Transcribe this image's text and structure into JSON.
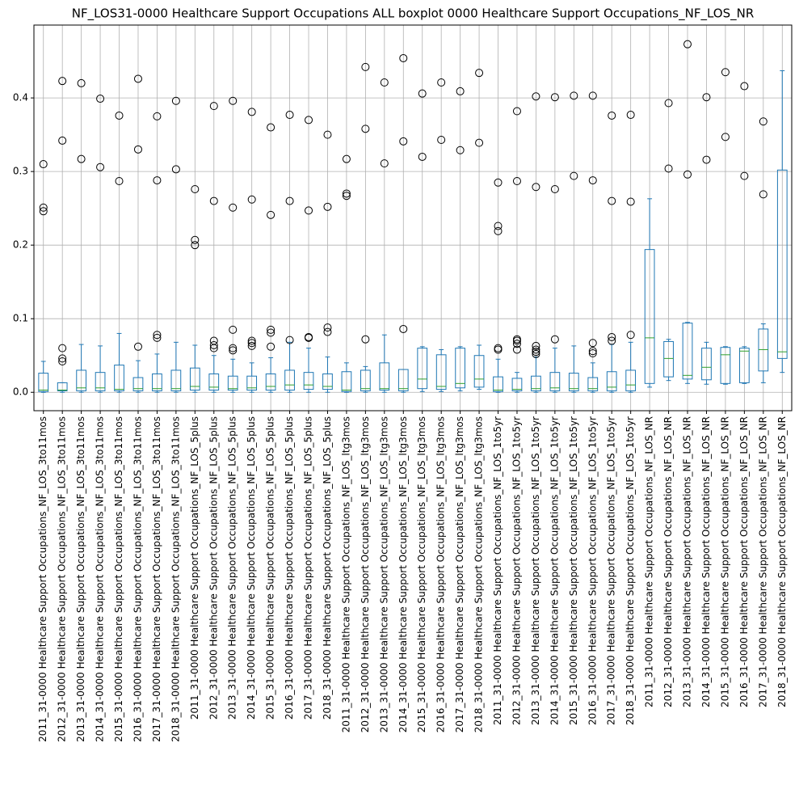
{
  "chart_data": {
    "type": "boxplot",
    "title": "NF_LOS31-0000 Healthcare Support Occupations ALL boxplot 0000 Healthcare Support Occupations_NF_LOS_NR",
    "categories": [
      "2011_31-0000 Healthcare Support Occupations_NF_LOS_3to11mos",
      "2012_31-0000 Healthcare Support Occupations_NF_LOS_3to11mos",
      "2013_31-0000 Healthcare Support Occupations_NF_LOS_3to11mos",
      "2014_31-0000 Healthcare Support Occupations_NF_LOS_3to11mos",
      "2015_31-0000 Healthcare Support Occupations_NF_LOS_3to11mos",
      "2016_31-0000 Healthcare Support Occupations_NF_LOS_3to11mos",
      "2017_31-0000 Healthcare Support Occupations_NF_LOS_3to11mos",
      "2018_31-0000 Healthcare Support Occupations_NF_LOS_3to11mos",
      "2011_31-0000 Healthcare Support Occupations_NF_LOS_5plus",
      "2012_31-0000 Healthcare Support Occupations_NF_LOS_5plus",
      "2013_31-0000 Healthcare Support Occupations_NF_LOS_5plus",
      "2014_31-0000 Healthcare Support Occupations_NF_LOS_5plus",
      "2015_31-0000 Healthcare Support Occupations_NF_LOS_5plus",
      "2016_31-0000 Healthcare Support Occupations_NF_LOS_5plus",
      "2017_31-0000 Healthcare Support Occupations_NF_LOS_5plus",
      "2018_31-0000 Healthcare Support Occupations_NF_LOS_5plus",
      "2011_31-0000 Healthcare Support Occupations_NF_LOS_ltg3mos",
      "2012_31-0000 Healthcare Support Occupations_NF_LOS_ltg3mos",
      "2013_31-0000 Healthcare Support Occupations_NF_LOS_ltg3mos",
      "2014_31-0000 Healthcare Support Occupations_NF_LOS_ltg3mos",
      "2015_31-0000 Healthcare Support Occupations_NF_LOS_ltg3mos",
      "2016_31-0000 Healthcare Support Occupations_NF_LOS_ltg3mos",
      "2017_31-0000 Healthcare Support Occupations_NF_LOS_ltg3mos",
      "2018_31-0000 Healthcare Support Occupations_NF_LOS_ltg3mos",
      "2011_31-0000 Healthcare Support Occupations_NF_LOS_1to5yr",
      "2012_31-0000 Healthcare Support Occupations_NF_LOS_1to5yr",
      "2013_31-0000 Healthcare Support Occupations_NF_LOS_1to5yr",
      "2014_31-0000 Healthcare Support Occupations_NF_LOS_1to5yr",
      "2015_31-0000 Healthcare Support Occupations_NF_LOS_1to5yr",
      "2016_31-0000 Healthcare Support Occupations_NF_LOS_1to5yr",
      "2017_31-0000 Healthcare Support Occupations_NF_LOS_1to5yr",
      "2018_31-0000 Healthcare Support Occupations_NF_LOS_1to5yr",
      "2011_31-0000 Healthcare Support Occupations_NF_LOS_NR",
      "2012_31-0000 Healthcare Support Occupations_NF_LOS_NR",
      "2013_31-0000 Healthcare Support Occupations_NF_LOS_NR",
      "2014_31-0000 Healthcare Support Occupations_NF_LOS_NR",
      "2015_31-0000 Healthcare Support Occupations_NF_LOS_NR",
      "2016_31-0000 Healthcare Support Occupations_NF_LOS_NR",
      "2017_31-0000 Healthcare Support Occupations_NF_LOS_NR",
      "2018_31-0000 Healthcare Support Occupations_NF_LOS_NR"
    ],
    "boxes": [
      {
        "whislo": 0,
        "q1": 0.001,
        "med": 0.003,
        "q3": 0.026,
        "whishi": 0.042,
        "fliers": [
          0.31,
          0.251,
          0.246
        ]
      },
      {
        "whislo": 0,
        "q1": 0.002,
        "med": 0.003,
        "q3": 0.013,
        "whishi": 0.013,
        "fliers": [
          0.042,
          0.046,
          0.06,
          0.342,
          0.423
        ]
      },
      {
        "whislo": 0,
        "q1": 0.002,
        "med": 0.006,
        "q3": 0.03,
        "whishi": 0.065,
        "fliers": [
          0.317,
          0.42
        ]
      },
      {
        "whislo": 0,
        "q1": 0.002,
        "med": 0.006,
        "q3": 0.027,
        "whishi": 0.063,
        "fliers": [
          0.306,
          0.399
        ]
      },
      {
        "whislo": 0,
        "q1": 0.002,
        "med": 0.004,
        "q3": 0.037,
        "whishi": 0.08,
        "fliers": [
          0.287,
          0.376
        ]
      },
      {
        "whislo": 0,
        "q1": 0.002,
        "med": 0.005,
        "q3": 0.02,
        "whishi": 0.043,
        "fliers": [
          0.062,
          0.33,
          0.426
        ]
      },
      {
        "whislo": 0,
        "q1": 0.002,
        "med": 0.005,
        "q3": 0.025,
        "whishi": 0.052,
        "fliers": [
          0.074,
          0.078,
          0.288,
          0.375
        ]
      },
      {
        "whislo": 0,
        "q1": 0.002,
        "med": 0.005,
        "q3": 0.03,
        "whishi": 0.068,
        "fliers": [
          0.303,
          0.396
        ]
      },
      {
        "whislo": 0,
        "q1": 0.003,
        "med": 0.008,
        "q3": 0.033,
        "whishi": 0.064,
        "fliers": [
          0.2,
          0.207,
          0.276
        ]
      },
      {
        "whislo": 0,
        "q1": 0.003,
        "med": 0.007,
        "q3": 0.025,
        "whishi": 0.05,
        "fliers": [
          0.06,
          0.064,
          0.07,
          0.26,
          0.389
        ]
      },
      {
        "whislo": 0,
        "q1": 0.003,
        "med": 0.005,
        "q3": 0.022,
        "whishi": 0.045,
        "fliers": [
          0.057,
          0.06,
          0.085,
          0.251,
          0.396
        ]
      },
      {
        "whislo": 0,
        "q1": 0.003,
        "med": 0.006,
        "q3": 0.022,
        "whishi": 0.04,
        "fliers": [
          0.063,
          0.067,
          0.07,
          0.262,
          0.381
        ]
      },
      {
        "whislo": 0,
        "q1": 0.003,
        "med": 0.008,
        "q3": 0.025,
        "whishi": 0.047,
        "fliers": [
          0.062,
          0.081,
          0.085,
          0.241,
          0.36
        ]
      },
      {
        "whislo": 0,
        "q1": 0.003,
        "med": 0.01,
        "q3": 0.03,
        "whishi": 0.068,
        "fliers": [
          0.071,
          0.26,
          0.377
        ]
      },
      {
        "whislo": 0,
        "q1": 0.004,
        "med": 0.01,
        "q3": 0.027,
        "whishi": 0.06,
        "fliers": [
          0.074,
          0.075,
          0.247,
          0.37
        ]
      },
      {
        "whislo": 0,
        "q1": 0.004,
        "med": 0.008,
        "q3": 0.025,
        "whishi": 0.048,
        "fliers": [
          0.082,
          0.088,
          0.252,
          0.35
        ]
      },
      {
        "whislo": 0,
        "q1": 0.001,
        "med": 0.003,
        "q3": 0.028,
        "whishi": 0.04,
        "fliers": [
          0.267,
          0.27,
          0.317
        ]
      },
      {
        "whislo": 0,
        "q1": 0.002,
        "med": 0.005,
        "q3": 0.03,
        "whishi": 0.035,
        "fliers": [
          0.072,
          0.358,
          0.442
        ]
      },
      {
        "whislo": 0,
        "q1": 0.003,
        "med": 0.005,
        "q3": 0.04,
        "whishi": 0.078,
        "fliers": [
          0.311,
          0.421
        ]
      },
      {
        "whislo": 0,
        "q1": 0.002,
        "med": 0.005,
        "q3": 0.031,
        "whishi": 0.031,
        "fliers": [
          0.086,
          0.341,
          0.454
        ]
      },
      {
        "whislo": 0.001,
        "q1": 0.005,
        "med": 0.018,
        "q3": 0.06,
        "whishi": 0.062,
        "fliers": [
          0.32,
          0.406
        ]
      },
      {
        "whislo": 0.001,
        "q1": 0.004,
        "med": 0.008,
        "q3": 0.051,
        "whishi": 0.058,
        "fliers": [
          0.343,
          0.421
        ]
      },
      {
        "whislo": 0.002,
        "q1": 0.006,
        "med": 0.012,
        "q3": 0.06,
        "whishi": 0.062,
        "fliers": [
          0.329,
          0.409
        ]
      },
      {
        "whislo": 0.004,
        "q1": 0.007,
        "med": 0.018,
        "q3": 0.05,
        "whishi": 0.064,
        "fliers": [
          0.339,
          0.434
        ]
      },
      {
        "whislo": 0,
        "q1": 0.001,
        "med": 0.003,
        "q3": 0.021,
        "whishi": 0.045,
        "fliers": [
          0.058,
          0.06,
          0.219,
          0.226,
          0.285
        ]
      },
      {
        "whislo": 0,
        "q1": 0.002,
        "med": 0.004,
        "q3": 0.019,
        "whishi": 0.027,
        "fliers": [
          0.058,
          0.066,
          0.07,
          0.072,
          0.287,
          0.382
        ]
      },
      {
        "whislo": 0,
        "q1": 0.002,
        "med": 0.005,
        "q3": 0.022,
        "whishi": 0.048,
        "fliers": [
          0.052,
          0.055,
          0.058,
          0.063,
          0.279,
          0.402
        ]
      },
      {
        "whislo": 0,
        "q1": 0.002,
        "med": 0.006,
        "q3": 0.027,
        "whishi": 0.06,
        "fliers": [
          0.072,
          0.276,
          0.401
        ]
      },
      {
        "whislo": 0,
        "q1": 0.002,
        "med": 0.005,
        "q3": 0.026,
        "whishi": 0.063,
        "fliers": [
          0.294,
          0.403
        ]
      },
      {
        "whislo": 0,
        "q1": 0.002,
        "med": 0.005,
        "q3": 0.02,
        "whishi": 0.04,
        "fliers": [
          0.053,
          0.056,
          0.067,
          0.288,
          0.403
        ]
      },
      {
        "whislo": 0,
        "q1": 0.002,
        "med": 0.007,
        "q3": 0.028,
        "whishi": 0.065,
        "fliers": [
          0.07,
          0.075,
          0.26,
          0.376
        ]
      },
      {
        "whislo": 0,
        "q1": 0.002,
        "med": 0.01,
        "q3": 0.03,
        "whishi": 0.068,
        "fliers": [
          0.078,
          0.259,
          0.377
        ]
      },
      {
        "whislo": 0.007,
        "q1": 0.012,
        "med": 0.074,
        "q3": 0.194,
        "whishi": 0.263,
        "fliers": []
      },
      {
        "whislo": 0.016,
        "q1": 0.021,
        "med": 0.046,
        "q3": 0.069,
        "whishi": 0.072,
        "fliers": [
          0.304,
          0.393
        ]
      },
      {
        "whislo": 0.012,
        "q1": 0.018,
        "med": 0.023,
        "q3": 0.094,
        "whishi": 0.095,
        "fliers": [
          0.296,
          0.473
        ]
      },
      {
        "whislo": 0.011,
        "q1": 0.017,
        "med": 0.034,
        "q3": 0.06,
        "whishi": 0.068,
        "fliers": [
          0.316,
          0.401
        ]
      },
      {
        "whislo": 0.011,
        "q1": 0.012,
        "med": 0.051,
        "q3": 0.061,
        "whishi": 0.062,
        "fliers": [
          0.347,
          0.435
        ]
      },
      {
        "whislo": 0.012,
        "q1": 0.013,
        "med": 0.056,
        "q3": 0.06,
        "whishi": 0.062,
        "fliers": [
          0.294,
          0.416
        ]
      },
      {
        "whislo": 0.013,
        "q1": 0.029,
        "med": 0.058,
        "q3": 0.086,
        "whishi": 0.093,
        "fliers": [
          0.269,
          0.368
        ]
      },
      {
        "whislo": 0.027,
        "q1": 0.046,
        "med": 0.055,
        "q3": 0.302,
        "whishi": 0.437,
        "fliers": []
      }
    ],
    "ylim": [
      -0.025,
      0.499
    ],
    "yticks": [
      {
        "value": 0,
        "label": "0.0"
      },
      0.1,
      0.2,
      0.3,
      0.4
    ],
    "grid": true,
    "color": "#1f77b4",
    "median_color": "#2ca02c",
    "flier_color": "#000000"
  }
}
